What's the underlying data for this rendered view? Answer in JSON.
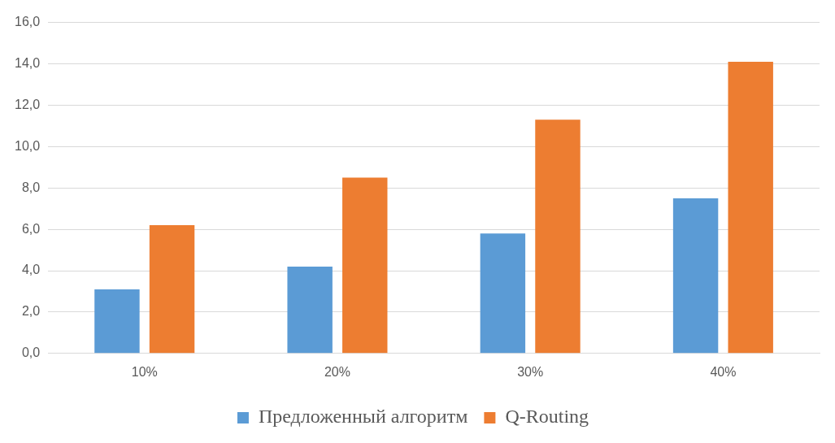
{
  "chart_data": {
    "type": "bar",
    "categories": [
      "10%",
      "20%",
      "30%",
      "40%"
    ],
    "series": [
      {
        "name": "Предложенный алгоритм",
        "color": "#5b9bd5",
        "values": [
          3.1,
          4.2,
          5.8,
          7.5
        ]
      },
      {
        "name": "Q-Routing",
        "color": "#ed7d31",
        "values": [
          6.2,
          8.5,
          11.3,
          14.1
        ]
      }
    ],
    "ylim": [
      0,
      16
    ],
    "yticks": [
      {
        "value": 0,
        "label": "0,0"
      },
      {
        "value": 2,
        "label": "2,0"
      },
      {
        "value": 4,
        "label": "4,0"
      },
      {
        "value": 6,
        "label": "6,0"
      },
      {
        "value": 8,
        "label": "8,0"
      },
      {
        "value": 10,
        "label": "10,0"
      },
      {
        "value": 12,
        "label": "12,0"
      },
      {
        "value": 14,
        "label": "14,0"
      },
      {
        "value": 16,
        "label": "16,0"
      }
    ],
    "grid": "y",
    "legend": "bottom"
  }
}
